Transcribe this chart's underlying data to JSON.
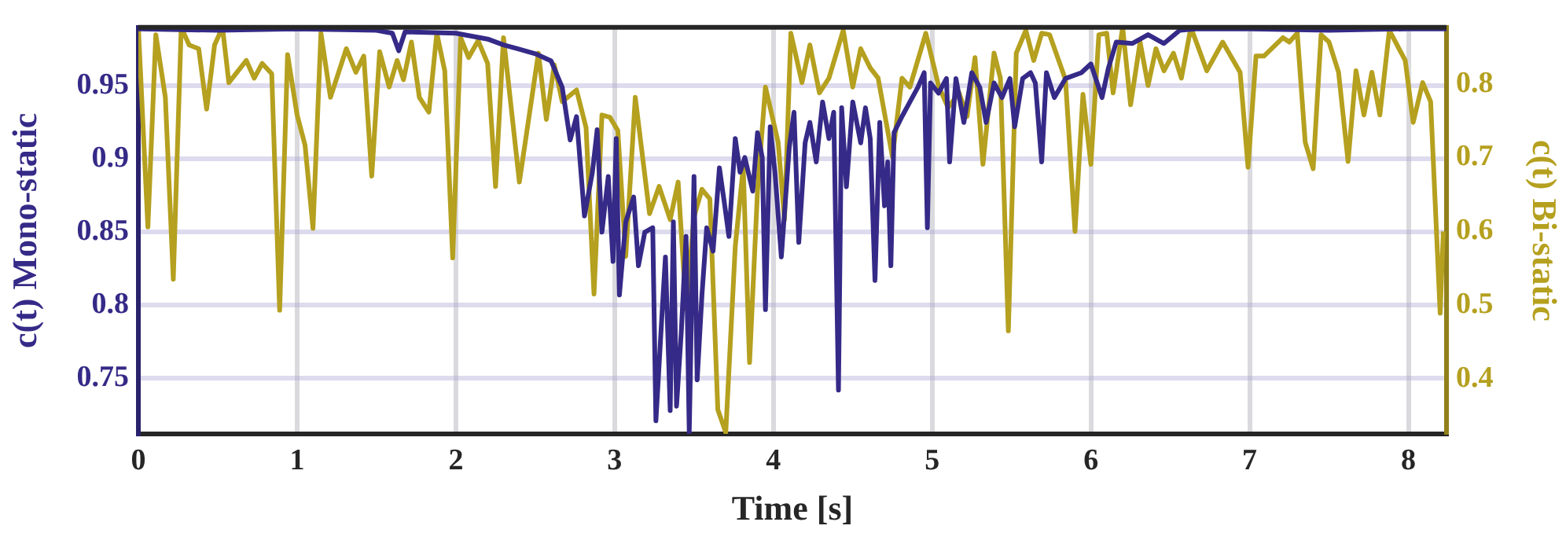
{
  "chart_data": {
    "type": "line",
    "xlabel": "Time [s]",
    "ylabel": "c(t) Mono-static",
    "y2label": "c(t) Bi-static",
    "xlim": [
      0,
      8.24
    ],
    "xticks": [
      0,
      1,
      2,
      3,
      4,
      5,
      6,
      7,
      8
    ],
    "ylim": [
      0.712,
      0.99
    ],
    "yticks": [
      0.75,
      0.8,
      0.85,
      0.9,
      0.95
    ],
    "y2lim": [
      0.325,
      0.877
    ],
    "y2ticks": [
      0.4,
      0.5,
      0.6,
      0.7,
      0.8
    ],
    "grid": true,
    "line_style": "solid",
    "marker": "none",
    "series": [
      {
        "color": "#352a87",
        "x": [
          0,
          0.5,
          1.0,
          1.5,
          1.6,
          1.64,
          1.68,
          2.0,
          2.2,
          2.3,
          2.4,
          2.5,
          2.6,
          2.67,
          2.72,
          2.76,
          2.81,
          2.86,
          2.89,
          2.92,
          2.96,
          2.99,
          3.01,
          3.03,
          3.07,
          3.12,
          3.15,
          3.19,
          3.24,
          3.26,
          3.3,
          3.32,
          3.35,
          3.37,
          3.39,
          3.42,
          3.45,
          3.47,
          3.5,
          3.52,
          3.55,
          3.58,
          3.62,
          3.66,
          3.69,
          3.72,
          3.76,
          3.79,
          3.82,
          3.87,
          3.9,
          3.93,
          3.95,
          3.98,
          4.01,
          4.05,
          4.1,
          4.13,
          4.16,
          4.2,
          4.23,
          4.27,
          4.31,
          4.35,
          4.38,
          4.41,
          4.43,
          4.46,
          4.5,
          4.55,
          4.58,
          4.61,
          4.64,
          4.67,
          4.7,
          4.72,
          4.74,
          4.76,
          4.81,
          4.86,
          4.91,
          4.95,
          4.97,
          4.99,
          5.04,
          5.09,
          5.11,
          5.15,
          5.2,
          5.25,
          5.3,
          5.34,
          5.39,
          5.44,
          5.49,
          5.52,
          5.57,
          5.62,
          5.65,
          5.69,
          5.72,
          5.77,
          5.84,
          5.94,
          6.0,
          6.07,
          6.11,
          6.16,
          6.26,
          6.36,
          6.46,
          6.56,
          6.66,
          7.0,
          7.5,
          8.0,
          8.24
        ],
        "values": [
          0.989,
          0.988,
          0.989,
          0.988,
          0.986,
          0.974,
          0.987,
          0.986,
          0.982,
          0.978,
          0.975,
          0.972,
          0.967,
          0.949,
          0.913,
          0.929,
          0.861,
          0.891,
          0.92,
          0.85,
          0.888,
          0.83,
          0.914,
          0.807,
          0.857,
          0.874,
          0.827,
          0.85,
          0.853,
          0.721,
          0.797,
          0.833,
          0.728,
          0.857,
          0.731,
          0.782,
          0.847,
          0.713,
          0.888,
          0.749,
          0.807,
          0.853,
          0.837,
          0.894,
          0.871,
          0.847,
          0.914,
          0.891,
          0.901,
          0.878,
          0.918,
          0.901,
          0.797,
          0.922,
          0.891,
          0.833,
          0.908,
          0.932,
          0.843,
          0.911,
          0.925,
          0.898,
          0.939,
          0.914,
          0.932,
          0.742,
          0.935,
          0.881,
          0.939,
          0.911,
          0.935,
          0.914,
          0.817,
          0.925,
          0.868,
          0.898,
          0.827,
          0.918,
          0.929,
          0.939,
          0.949,
          0.959,
          0.853,
          0.952,
          0.945,
          0.955,
          0.898,
          0.955,
          0.925,
          0.959,
          0.949,
          0.925,
          0.952,
          0.942,
          0.955,
          0.922,
          0.955,
          0.959,
          0.952,
          0.898,
          0.959,
          0.942,
          0.955,
          0.959,
          0.965,
          0.942,
          0.962,
          0.98,
          0.979,
          0.985,
          0.979,
          0.988,
          0.989,
          0.989,
          0.988,
          0.989,
          0.989
        ]
      },
      {
        "color": "#b5a01f",
        "axis": "y2",
        "x": [
          0,
          0.06,
          0.11,
          0.17,
          0.22,
          0.27,
          0.32,
          0.38,
          0.43,
          0.48,
          0.53,
          0.57,
          0.68,
          0.73,
          0.78,
          0.84,
          0.89,
          0.94,
          1.0,
          1.05,
          1.1,
          1.15,
          1.21,
          1.31,
          1.37,
          1.42,
          1.47,
          1.52,
          1.58,
          1.63,
          1.67,
          1.72,
          1.77,
          1.83,
          1.88,
          1.93,
          1.98,
          2.03,
          2.08,
          2.14,
          2.2,
          2.25,
          2.3,
          2.4,
          2.52,
          2.57,
          2.62,
          2.67,
          2.76,
          2.82,
          2.87,
          2.92,
          2.97,
          3.02,
          3.07,
          3.13,
          3.22,
          3.28,
          3.35,
          3.4,
          3.45,
          3.5,
          3.55,
          3.6,
          3.65,
          3.7,
          3.76,
          3.81,
          3.85,
          3.9,
          3.95,
          4.03,
          4.07,
          4.11,
          4.18,
          4.23,
          4.29,
          4.35,
          4.44,
          4.5,
          4.55,
          4.61,
          4.66,
          4.75,
          4.81,
          4.86,
          4.96,
          5.04,
          5.1,
          5.17,
          5.22,
          5.27,
          5.32,
          5.39,
          5.43,
          5.48,
          5.53,
          5.59,
          5.64,
          5.69,
          5.74,
          5.84,
          5.9,
          5.95,
          6.0,
          6.05,
          6.1,
          6.14,
          6.2,
          6.25,
          6.31,
          6.36,
          6.41,
          6.46,
          6.52,
          6.57,
          6.63,
          6.73,
          6.83,
          6.94,
          6.99,
          7.04,
          7.09,
          7.21,
          7.25,
          7.3,
          7.35,
          7.4,
          7.45,
          7.5,
          7.56,
          7.62,
          7.67,
          7.72,
          7.77,
          7.82,
          7.88,
          7.98,
          8.03,
          8.09,
          8.14,
          8.2,
          8.22
        ],
        "values": [
          0.877,
          0.606,
          0.867,
          0.782,
          0.535,
          0.877,
          0.853,
          0.848,
          0.766,
          0.853,
          0.877,
          0.802,
          0.832,
          0.808,
          0.828,
          0.814,
          0.493,
          0.84,
          0.758,
          0.717,
          0.604,
          0.869,
          0.782,
          0.848,
          0.816,
          0.838,
          0.675,
          0.844,
          0.796,
          0.832,
          0.806,
          0.857,
          0.782,
          0.762,
          0.869,
          0.818,
          0.564,
          0.863,
          0.836,
          0.859,
          0.828,
          0.661,
          0.863,
          0.667,
          0.842,
          0.752,
          0.826,
          0.776,
          0.792,
          0.741,
          0.515,
          0.758,
          0.755,
          0.737,
          0.566,
          0.782,
          0.624,
          0.661,
          0.616,
          0.667,
          0.495,
          0.62,
          0.657,
          0.644,
          0.358,
          0.327,
          0.58,
          0.687,
          0.422,
          0.655,
          0.796,
          0.721,
          0.616,
          0.869,
          0.802,
          0.853,
          0.788,
          0.808,
          0.873,
          0.796,
          0.848,
          0.822,
          0.808,
          0.701,
          0.808,
          0.796,
          0.869,
          0.798,
          0.768,
          0.788,
          0.756,
          0.836,
          0.691,
          0.842,
          0.808,
          0.465,
          0.842,
          0.873,
          0.832,
          0.869,
          0.867,
          0.806,
          0.6,
          0.786,
          0.691,
          0.867,
          0.869,
          0.788,
          0.877,
          0.772,
          0.857,
          0.798,
          0.848,
          0.818,
          0.842,
          0.808,
          0.877,
          0.818,
          0.857,
          0.816,
          0.687,
          0.838,
          0.838,
          0.863,
          0.857,
          0.869,
          0.721,
          0.685,
          0.867,
          0.857,
          0.816,
          0.695,
          0.818,
          0.758,
          0.816,
          0.758,
          0.873,
          0.832,
          0.748,
          0.802,
          0.776,
          0.489,
          0.6
        ]
      }
    ]
  }
}
